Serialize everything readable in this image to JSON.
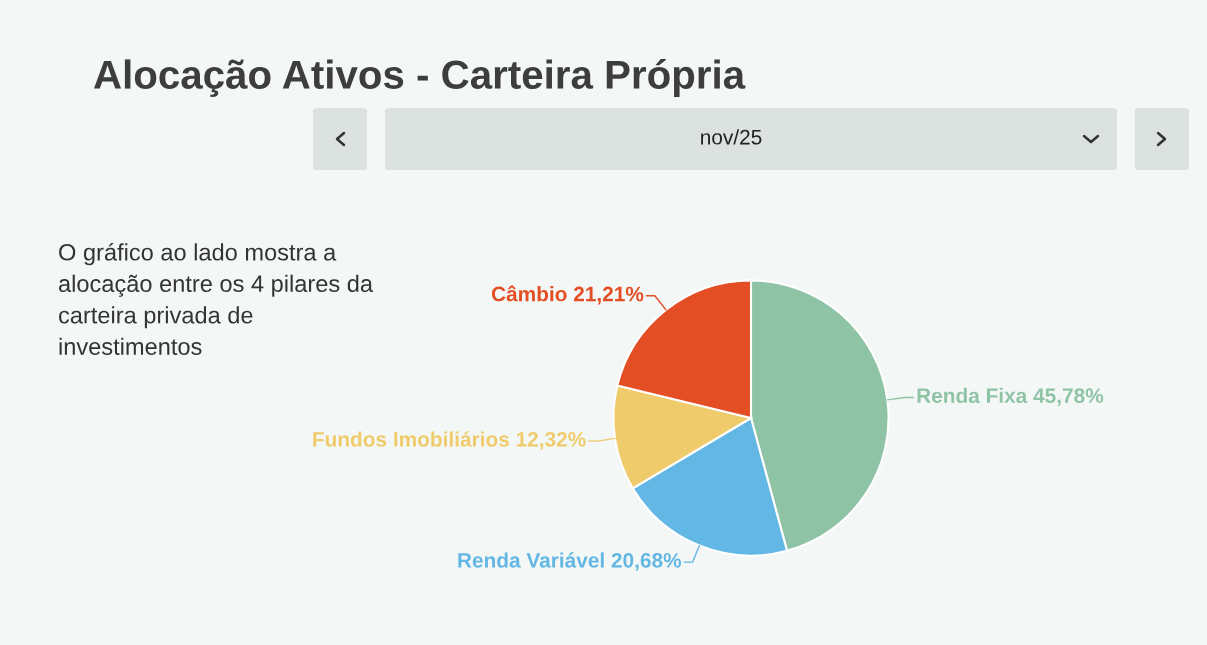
{
  "chart_data": {
    "type": "pie",
    "title": "Alocação Ativos - Carteira Própria",
    "subtitle": "nov/25",
    "categories": [
      "Renda Fixa",
      "Renda Variável",
      "Fundos Imobiliários",
      "Câmbio"
    ],
    "values": [
      45.78,
      20.68,
      12.32,
      21.21
    ],
    "value_labels": [
      "45,78%",
      "20,68%",
      "12,32%",
      "21,21%"
    ],
    "colors": [
      "#8fc3a6",
      "#62b7e4",
      "#f0cb6c",
      "#e34e24"
    ],
    "annotations": [
      "O gráfico ao lado mostra a alocação entre os 4 pilares da carteira privada de investimentos"
    ],
    "legend": false
  }
}
